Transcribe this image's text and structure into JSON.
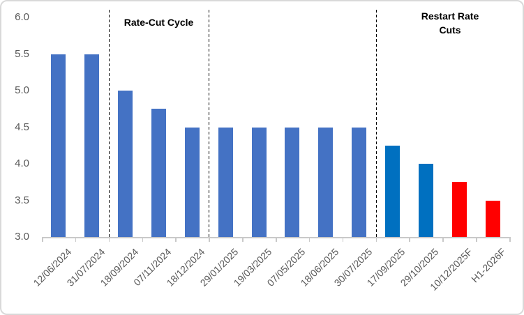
{
  "chart_data": {
    "type": "bar",
    "title": "",
    "xlabel": "",
    "ylabel": "",
    "categories": [
      "12/06/2024",
      "31/07/2024",
      "18/09/2024",
      "07/11/2024",
      "18/12/2024",
      "29/01/2025",
      "19/03/2025",
      "07/05/2025",
      "18/06/2025",
      "30/07/2025",
      "17/09/2025",
      "29/10/2025",
      "10/12/2025F",
      "H1-2026F"
    ],
    "values": [
      5.5,
      5.5,
      5.0,
      4.75,
      4.5,
      4.5,
      4.5,
      4.5,
      4.5,
      4.5,
      4.25,
      4.0,
      3.75,
      3.5
    ],
    "bar_colors": [
      "#4472C4",
      "#4472C4",
      "#4472C4",
      "#4472C4",
      "#4472C4",
      "#4472C4",
      "#4472C4",
      "#4472C4",
      "#4472C4",
      "#4472C4",
      "#0070C0",
      "#0070C0",
      "#FF0000",
      "#FF0000"
    ],
    "ylim": [
      3.0,
      6.0
    ],
    "ytick_step": 0.5,
    "ytick_labels": [
      "6.0",
      "5.5",
      "5.0",
      "4.5",
      "4.0",
      "3.5",
      "3.0"
    ],
    "grid": false,
    "legend": "none",
    "annotations": [
      {
        "text": "Rate-Cut Cycle"
      },
      {
        "text": "Restart Rate Cuts"
      }
    ],
    "dividers_after_category_index": [
      1,
      4,
      9
    ],
    "colors": {
      "historical_bar": "#4472C4",
      "recent_cut_bar": "#0070C0",
      "forecast_bar": "#FF0000",
      "axis_line": "#C9C9C9",
      "tick_text": "#595959",
      "annotation_text": "#000000",
      "divider_line": "#000000",
      "chart_border": "#D9D9D9"
    }
  }
}
